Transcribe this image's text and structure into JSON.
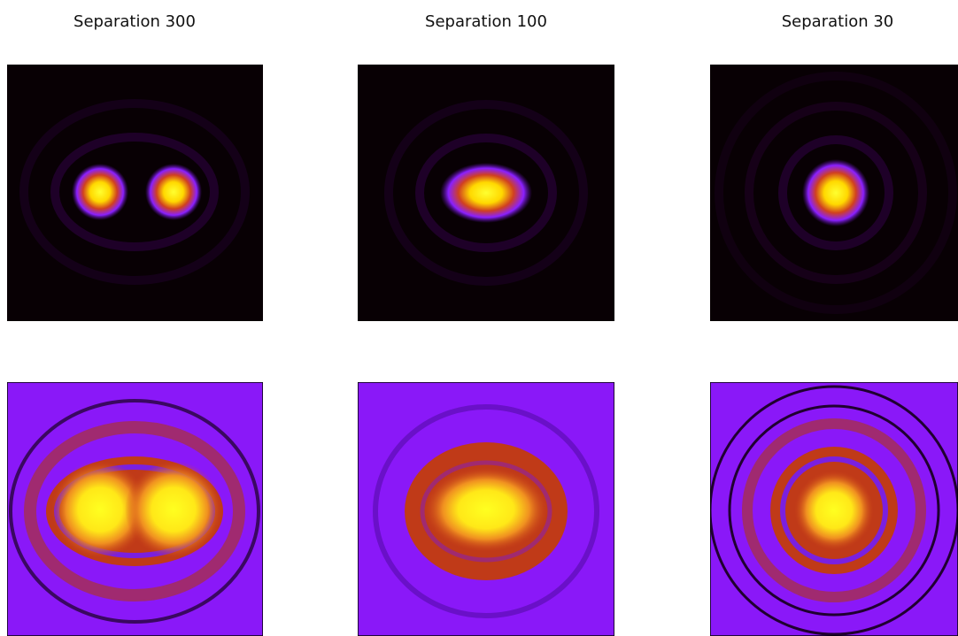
{
  "panels": [
    {
      "title": "Separation 300"
    },
    {
      "title": "Separation 100"
    },
    {
      "title": "Separation 30"
    }
  ]
}
